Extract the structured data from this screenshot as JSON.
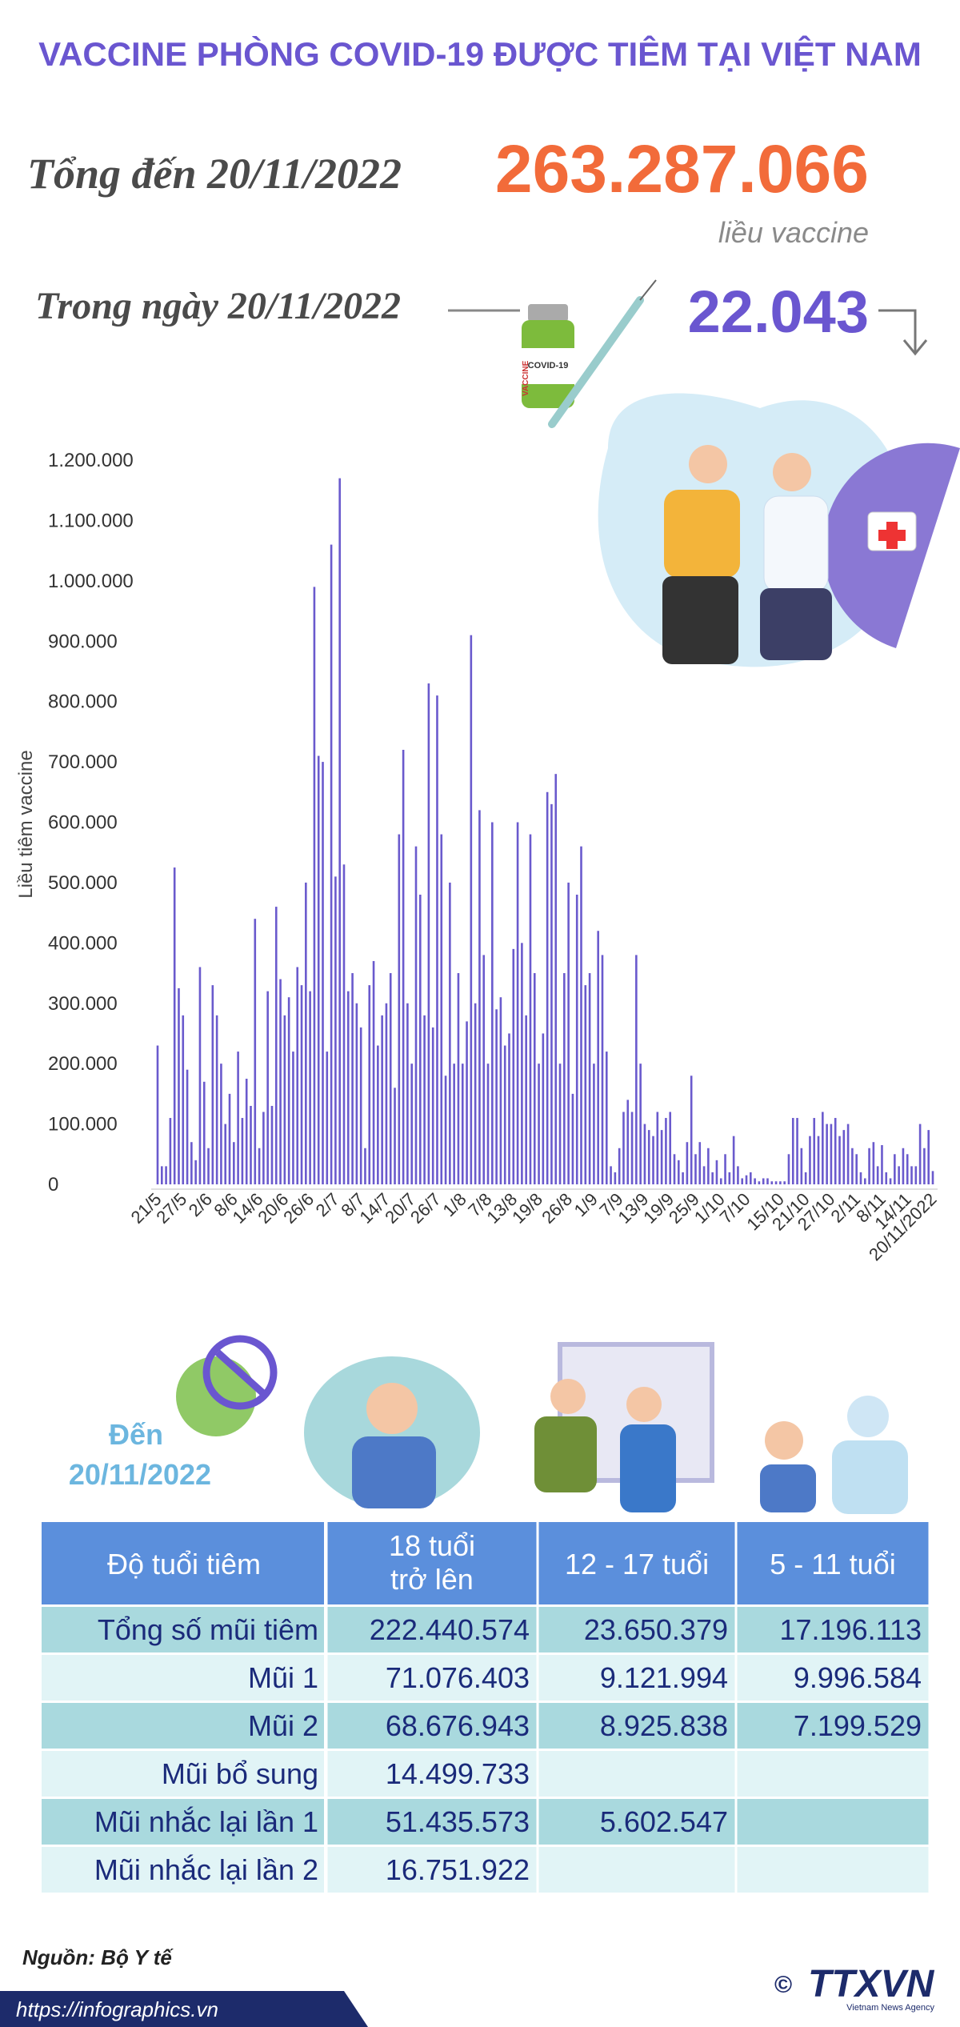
{
  "header": {
    "title": "VACCINE PHÒNG COVID-19 ĐƯỢC TIÊM TẠI VIỆT NAM"
  },
  "summary": {
    "total_label": "Tổng đến 20/11/2022",
    "total_value": "263.287.066",
    "total_unit": "liều vaccine",
    "daily_label": "Trong ngày 20/11/2022",
    "daily_value": "22.043"
  },
  "illustration": {
    "vial_brand": "VACCINE",
    "vial_label": "COVID-19"
  },
  "chart_data": {
    "type": "bar",
    "y_label": "Liều tiêm vaccine",
    "color": "#6a5acd",
    "grid": false,
    "ylim": [
      0,
      1200000
    ],
    "yticks": [
      0,
      {
        "value": 100000,
        "label": "100.000"
      },
      {
        "value": 200000,
        "label": "200.000"
      },
      {
        "value": 300000,
        "label": "300.000"
      },
      {
        "value": 400000,
        "label": "400.000"
      },
      {
        "value": 500000,
        "label": "500.000"
      },
      {
        "value": 600000,
        "label": "600.000"
      },
      {
        "value": 700000,
        "label": "700.000"
      },
      {
        "value": 800000,
        "label": "800.000"
      },
      {
        "value": 900000,
        "label": "900.000"
      },
      {
        "value": 1000000,
        "label": "1.000.000"
      },
      {
        "value": 1100000,
        "label": "1.100.000"
      },
      {
        "value": 1200000,
        "label": "1.200.000"
      }
    ],
    "categories": [
      "21/5",
      null,
      null,
      null,
      null,
      null,
      "27/5",
      null,
      null,
      null,
      null,
      null,
      "2/6",
      null,
      null,
      null,
      null,
      null,
      "8/6",
      null,
      null,
      null,
      null,
      null,
      "14/6",
      null,
      null,
      null,
      null,
      null,
      "20/6",
      null,
      null,
      null,
      null,
      null,
      "26/6",
      null,
      null,
      null,
      null,
      null,
      "2/7",
      null,
      null,
      null,
      null,
      null,
      "8/7",
      null,
      null,
      null,
      null,
      null,
      "14/7",
      null,
      null,
      null,
      null,
      null,
      "20/7",
      null,
      null,
      null,
      null,
      null,
      "26/7",
      null,
      null,
      null,
      null,
      null,
      "1/8",
      null,
      null,
      null,
      null,
      null,
      "7/8",
      null,
      null,
      null,
      null,
      null,
      "13/8",
      null,
      null,
      null,
      null,
      null,
      "19/8",
      null,
      null,
      null,
      null,
      null,
      null,
      "26/8",
      null,
      null,
      null,
      null,
      null,
      "1/9",
      null,
      null,
      null,
      null,
      null,
      "7/9",
      null,
      null,
      null,
      null,
      null,
      "13/9",
      null,
      null,
      null,
      null,
      null,
      "19/9",
      null,
      null,
      null,
      null,
      null,
      "25/9",
      null,
      null,
      null,
      null,
      null,
      "1/10",
      null,
      null,
      null,
      null,
      null,
      "7/10",
      null,
      null,
      null,
      null,
      null,
      null,
      null,
      "15/10",
      null,
      null,
      null,
      null,
      null,
      "21/10",
      null,
      null,
      null,
      null,
      null,
      "27/10",
      null,
      null,
      null,
      null,
      null,
      "2/11",
      null,
      null,
      null,
      null,
      null,
      "8/11",
      null,
      null,
      null,
      null,
      null,
      "14/11",
      null,
      null,
      null,
      null,
      null,
      "20/11/2022"
    ],
    "values": [
      230000,
      30000,
      30000,
      110000,
      525000,
      325000,
      280000,
      190000,
      70000,
      40000,
      360000,
      170000,
      60000,
      330000,
      280000,
      200000,
      100000,
      150000,
      70000,
      220000,
      110000,
      175000,
      130000,
      440000,
      60000,
      120000,
      320000,
      130000,
      460000,
      340000,
      280000,
      310000,
      220000,
      360000,
      330000,
      500000,
      320000,
      990000,
      710000,
      700000,
      220000,
      1060000,
      510000,
      1170000,
      530000,
      320000,
      350000,
      300000,
      260000,
      60000,
      330000,
      370000,
      230000,
      280000,
      300000,
      350000,
      160000,
      580000,
      720000,
      300000,
      200000,
      560000,
      480000,
      280000,
      830000,
      260000,
      810000,
      580000,
      180000,
      500000,
      200000,
      350000,
      200000,
      270000,
      910000,
      300000,
      620000,
      380000,
      200000,
      600000,
      290000,
      310000,
      230000,
      250000,
      390000,
      600000,
      400000,
      280000,
      580000,
      350000,
      200000,
      250000,
      650000,
      630000,
      680000,
      200000,
      350000,
      500000,
      150000,
      480000,
      560000,
      330000,
      350000,
      200000,
      420000,
      380000,
      220000,
      30000,
      20000,
      60000,
      120000,
      140000,
      120000,
      380000,
      200000,
      100000,
      90000,
      80000,
      120000,
      90000,
      110000,
      120000,
      50000,
      40000,
      20000,
      70000,
      180000,
      50000,
      70000,
      30000,
      60000,
      20000,
      40000,
      10000,
      50000,
      20000,
      80000,
      30000,
      10000,
      15000,
      20000,
      10000,
      5000,
      10000,
      10000,
      5000,
      5000,
      5000,
      5000,
      50000,
      110000,
      110000,
      60000,
      20000,
      80000,
      110000,
      80000,
      120000,
      100000,
      100000,
      110000,
      80000,
      90000,
      100000,
      60000,
      50000,
      20000,
      10000,
      60000,
      70000,
      30000,
      65000,
      20000,
      10000,
      50000,
      30000,
      60000,
      50000,
      30000,
      30000,
      100000,
      60000,
      90000,
      22043
    ]
  },
  "table_section": {
    "date_line1": "Đến",
    "date_line2": "20/11/2022"
  },
  "table": {
    "header": [
      "Độ tuổi tiêm",
      [
        "18 tuổi",
        "trở lên"
      ],
      "12 - 17 tuổi",
      "5 - 11 tuổi"
    ],
    "rows": [
      [
        "Tổng số mũi tiêm",
        "222.440.574",
        "23.650.379",
        "17.196.113"
      ],
      [
        "Mũi 1",
        "71.076.403",
        "9.121.994",
        "9.996.584"
      ],
      [
        "Mũi 2",
        "68.676.943",
        "8.925.838",
        "7.199.529"
      ],
      [
        "Mũi bổ sung",
        "14.499.733",
        null,
        null
      ],
      [
        "Mũi nhắc lại lần 1",
        "51.435.573",
        "5.602.547",
        null
      ],
      [
        "Mũi nhắc lại lần 2",
        "16.751.922",
        null,
        null
      ]
    ]
  },
  "footer": {
    "source": "Nguồn: Bộ Y tế",
    "url": "https://infographics.vn",
    "copyright": "©",
    "logo": "TTXVN",
    "agency": "Vietnam News Agency"
  }
}
